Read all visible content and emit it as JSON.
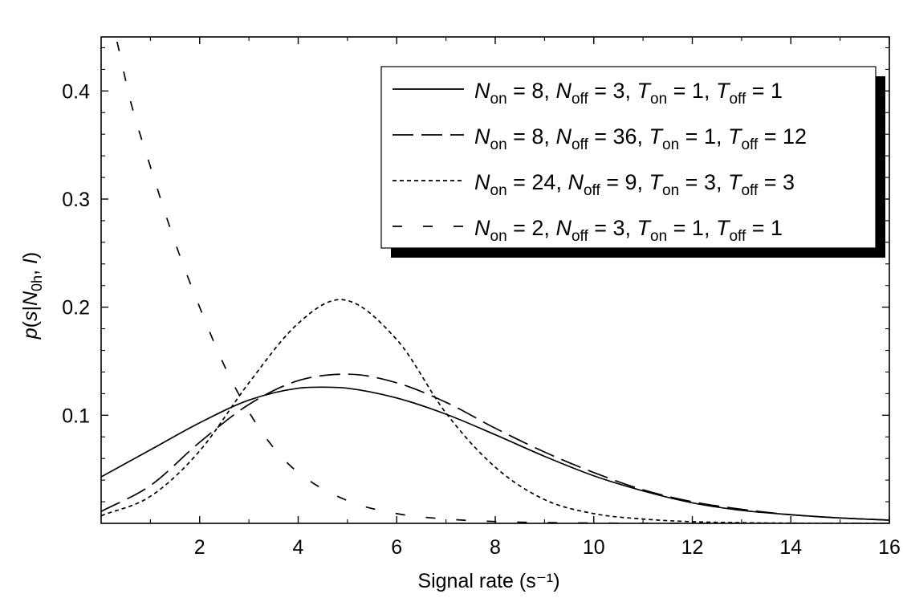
{
  "chart_data": {
    "type": "line",
    "title": "",
    "xlabel": "Signal rate (s⁻¹)",
    "ylabel_parts": {
      "p": "p",
      "s": "s",
      "N": "N",
      "sub": "0h",
      "I": "I"
    },
    "xlim": [
      0,
      16
    ],
    "ylim": [
      0,
      0.45
    ],
    "x_ticks": [
      2,
      4,
      6,
      8,
      10,
      12,
      14,
      16
    ],
    "x_tick_labels": [
      "2",
      "4",
      "6",
      "8",
      "10",
      "12",
      "14",
      "16"
    ],
    "y_ticks": [
      0.1,
      0.2,
      0.3,
      0.4
    ],
    "y_tick_labels": [
      "0.1",
      "0.2",
      "0.3",
      "0.4"
    ],
    "grid": false,
    "legend_position": "top-right",
    "series": [
      {
        "style": "solid",
        "legend": {
          "Non": "8",
          "Noff": "3",
          "Ton": "1",
          "Toff": "1"
        },
        "x": [
          0,
          1,
          2,
          3,
          4,
          4.5,
          5,
          6,
          7,
          8,
          9,
          10,
          11,
          12,
          13,
          14,
          15,
          16
        ],
        "y": [
          0.043,
          0.068,
          0.093,
          0.114,
          0.125,
          0.126,
          0.125,
          0.116,
          0.101,
          0.082,
          0.062,
          0.044,
          0.03,
          0.019,
          0.012,
          0.008,
          0.005,
          0.003
        ]
      },
      {
        "style": "long-dash",
        "legend": {
          "Non": "8",
          "Noff": "36",
          "Ton": "1",
          "Toff": "12"
        },
        "x": [
          0,
          1,
          2,
          3,
          4,
          5,
          6,
          7,
          8,
          9,
          10,
          11,
          12,
          13,
          14,
          15,
          16
        ],
        "y": [
          0.011,
          0.035,
          0.075,
          0.11,
          0.132,
          0.138,
          0.13,
          0.112,
          0.088,
          0.066,
          0.047,
          0.031,
          0.02,
          0.013,
          0.008,
          0.005,
          0.003
        ]
      },
      {
        "style": "short-dash",
        "legend": {
          "Non": "24",
          "Noff": "9",
          "Ton": "3",
          "Toff": "3"
        },
        "x": [
          0,
          1,
          2,
          3,
          4,
          4.85,
          6,
          7,
          8,
          9,
          10,
          11,
          12,
          13,
          14,
          16
        ],
        "y": [
          0.007,
          0.025,
          0.067,
          0.13,
          0.185,
          0.207,
          0.17,
          0.102,
          0.052,
          0.022,
          0.009,
          0.004,
          0.0015,
          0.0006,
          0.0002,
          0.0
        ]
      },
      {
        "style": "medium-dash",
        "legend": {
          "Non": "2",
          "Noff": "3",
          "Ton": "1",
          "Toff": "1"
        },
        "x": [
          0,
          0.3,
          0.6,
          1,
          1.5,
          2,
          2.5,
          3,
          3.5,
          4,
          5,
          6,
          7,
          8,
          10,
          12,
          16
        ],
        "y": [
          0.5,
          0.45,
          0.39,
          0.33,
          0.26,
          0.2,
          0.146,
          0.103,
          0.07,
          0.047,
          0.021,
          0.009,
          0.004,
          0.0017,
          0.0003,
          0.0,
          0.0
        ]
      }
    ]
  }
}
